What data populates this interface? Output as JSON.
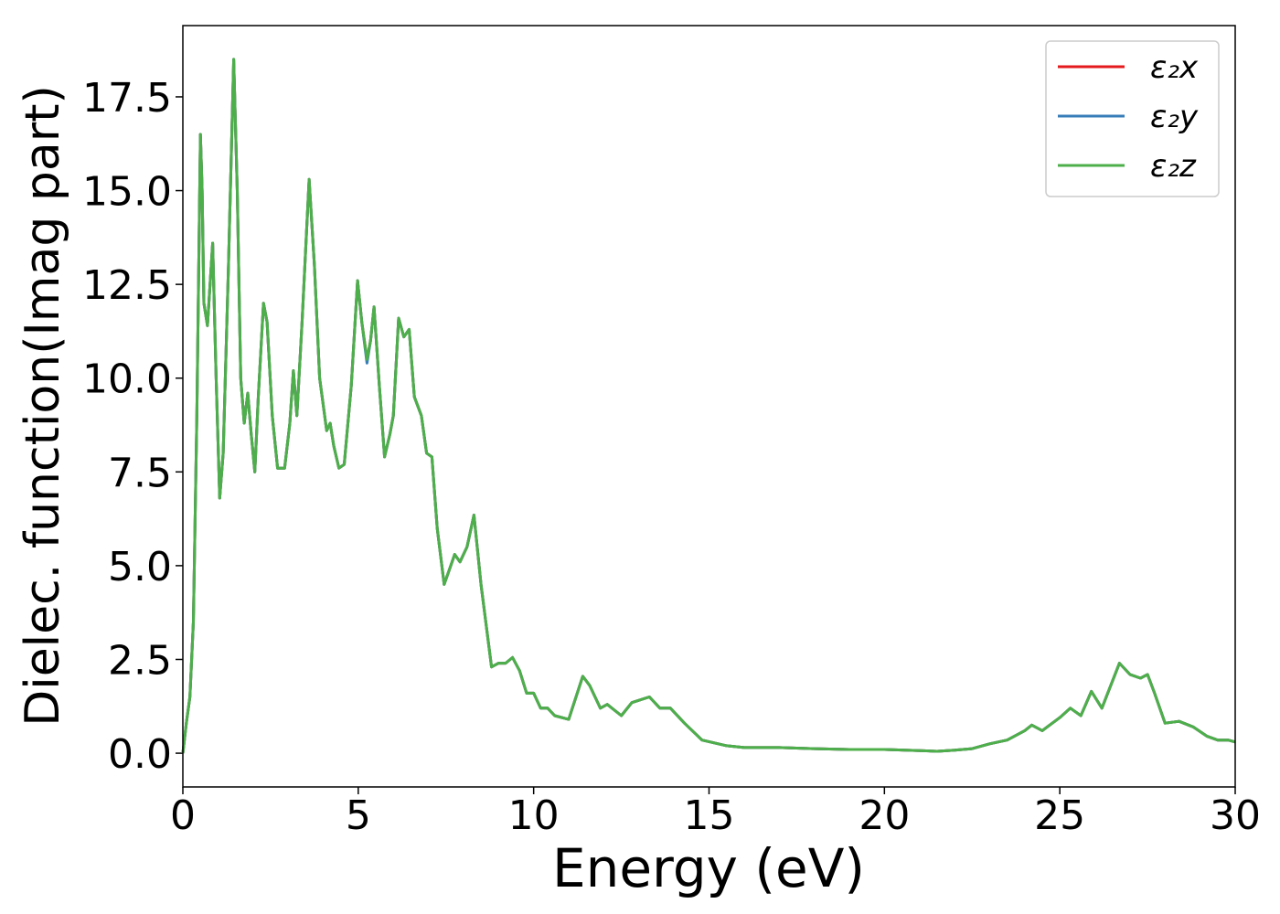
{
  "chart_data": {
    "type": "line",
    "xlabel": "Energy (eV)",
    "ylabel": "Dielec. function(Imag part)",
    "x": [
      0,
      0.1,
      0.2,
      0.3,
      0.4,
      0.5,
      0.55,
      0.6,
      0.7,
      0.85,
      0.95,
      1.05,
      1.15,
      1.3,
      1.45,
      1.55,
      1.65,
      1.75,
      1.85,
      1.95,
      2.05,
      2.15,
      2.3,
      2.4,
      2.55,
      2.7,
      2.9,
      3.05,
      3.15,
      3.25,
      3.4,
      3.6,
      3.75,
      3.9,
      4.1,
      4.2,
      4.3,
      4.45,
      4.6,
      4.8,
      4.98,
      5.1,
      5.25,
      5.35,
      5.45,
      5.6,
      5.75,
      5.9,
      6.0,
      6.15,
      6.3,
      6.45,
      6.6,
      6.8,
      6.95,
      7.1,
      7.25,
      7.45,
      7.6,
      7.75,
      7.9,
      8.1,
      8.3,
      8.5,
      8.8,
      9.0,
      9.2,
      9.4,
      9.6,
      9.8,
      10.0,
      10.2,
      10.4,
      10.6,
      11.0,
      11.4,
      11.6,
      11.9,
      12.1,
      12.5,
      12.8,
      13.3,
      13.6,
      13.9,
      14.3,
      14.8,
      15.5,
      16,
      17,
      18,
      19,
      20,
      21,
      21.5,
      22,
      22.5,
      23,
      23.5,
      24,
      24.2,
      24.5,
      25,
      25.3,
      25.6,
      25.9,
      26.2,
      26.7,
      27,
      27.3,
      27.5,
      27.7,
      28,
      28.4,
      28.8,
      29.2,
      29.5,
      29.8,
      30
    ],
    "series": [
      {
        "name": "ε₂x",
        "color": "#e41a1c",
        "values": [
          0,
          0.8,
          1.5,
          3.5,
          9,
          16.5,
          15,
          12,
          11.4,
          13.6,
          10,
          6.8,
          8,
          13,
          18.5,
          15,
          10,
          8.8,
          9.6,
          8.5,
          7.5,
          9.5,
          12,
          11.5,
          9,
          7.6,
          7.6,
          8.8,
          10.2,
          9.0,
          11.5,
          15.3,
          13,
          10,
          8.6,
          8.8,
          8.2,
          7.6,
          7.7,
          9.8,
          12.6,
          11.5,
          10.5,
          11,
          11.9,
          9.8,
          7.9,
          8.5,
          9,
          11.6,
          11.1,
          11.3,
          9.5,
          9,
          8,
          7.9,
          6,
          4.5,
          4.9,
          5.3,
          5.1,
          5.5,
          6.35,
          4.5,
          2.3,
          2.4,
          2.4,
          2.55,
          2.2,
          1.6,
          1.6,
          1.2,
          1.2,
          1.0,
          0.9,
          2.05,
          1.8,
          1.2,
          1.3,
          1.0,
          1.35,
          1.5,
          1.2,
          1.2,
          0.8,
          0.35,
          0.2,
          0.15,
          0.15,
          0.12,
          0.1,
          0.1,
          0.07,
          0.05,
          0.08,
          0.12,
          0.25,
          0.35,
          0.6,
          0.75,
          0.6,
          0.95,
          1.2,
          1.0,
          1.65,
          1.2,
          2.4,
          2.1,
          2.0,
          2.1,
          1.6,
          0.8,
          0.85,
          0.7,
          0.45,
          0.35,
          0.35,
          0.3
        ]
      },
      {
        "name": "ε₂y",
        "color": "#377eb8",
        "values": [
          0,
          0.8,
          1.5,
          3.5,
          9,
          16.5,
          15,
          12,
          11.4,
          13.6,
          10,
          6.8,
          8,
          13,
          18.5,
          15,
          10,
          8.8,
          9.6,
          8.5,
          7.5,
          9.5,
          12,
          11.5,
          9,
          7.6,
          7.6,
          8.8,
          10.2,
          9.0,
          11.5,
          15.3,
          13,
          10,
          8.6,
          8.8,
          8.2,
          7.6,
          7.7,
          9.8,
          12.6,
          11.5,
          10.4,
          11,
          11.9,
          9.8,
          7.9,
          8.5,
          9,
          11.6,
          11.1,
          11.3,
          9.5,
          9,
          8,
          7.9,
          6,
          4.5,
          4.9,
          5.3,
          5.1,
          5.5,
          6.35,
          4.5,
          2.3,
          2.4,
          2.4,
          2.55,
          2.2,
          1.6,
          1.6,
          1.2,
          1.2,
          1.0,
          0.9,
          2.05,
          1.8,
          1.2,
          1.3,
          1.0,
          1.35,
          1.5,
          1.2,
          1.2,
          0.8,
          0.35,
          0.2,
          0.15,
          0.15,
          0.12,
          0.1,
          0.1,
          0.07,
          0.05,
          0.08,
          0.12,
          0.25,
          0.35,
          0.6,
          0.75,
          0.6,
          0.95,
          1.2,
          1.0,
          1.65,
          1.2,
          2.4,
          2.1,
          2.0,
          2.1,
          1.6,
          0.8,
          0.85,
          0.7,
          0.45,
          0.35,
          0.35,
          0.3
        ]
      },
      {
        "name": "ε₂z",
        "color": "#4daf4a",
        "values": [
          0,
          0.8,
          1.5,
          3.5,
          9,
          16.5,
          15,
          12,
          11.4,
          13.6,
          10,
          6.8,
          8,
          13,
          18.5,
          15,
          10,
          8.8,
          9.6,
          8.5,
          7.5,
          9.5,
          12,
          11.5,
          9,
          7.6,
          7.6,
          8.8,
          10.2,
          9.0,
          11.5,
          15.3,
          13,
          10,
          8.6,
          8.8,
          8.2,
          7.6,
          7.7,
          9.8,
          12.6,
          11.5,
          10.5,
          11,
          11.9,
          9.8,
          7.9,
          8.5,
          9,
          11.6,
          11.1,
          11.3,
          9.5,
          9,
          8,
          7.9,
          6,
          4.5,
          4.9,
          5.3,
          5.1,
          5.5,
          6.35,
          4.5,
          2.3,
          2.4,
          2.4,
          2.55,
          2.2,
          1.6,
          1.6,
          1.2,
          1.2,
          1.0,
          0.9,
          2.05,
          1.8,
          1.2,
          1.3,
          1.0,
          1.35,
          1.5,
          1.2,
          1.2,
          0.8,
          0.35,
          0.2,
          0.15,
          0.15,
          0.12,
          0.1,
          0.1,
          0.07,
          0.05,
          0.08,
          0.12,
          0.25,
          0.35,
          0.6,
          0.75,
          0.6,
          0.95,
          1.2,
          1.0,
          1.65,
          1.2,
          2.4,
          2.1,
          2.0,
          2.1,
          1.6,
          0.8,
          0.85,
          0.7,
          0.45,
          0.35,
          0.35,
          0.3
        ]
      }
    ],
    "xlim": [
      0,
      30
    ],
    "xticks": [
      0,
      5,
      10,
      15,
      20,
      25,
      30
    ],
    "ylim": [
      -0.9,
      19.4
    ],
    "yticks": [
      {
        "value": 0,
        "label": "0.0"
      },
      2.5,
      {
        "value": 5,
        "label": "5.0"
      },
      7.5,
      {
        "value": 10,
        "label": "10.0"
      },
      12.5,
      {
        "value": 15,
        "label": "15.0"
      },
      17.5
    ],
    "legend": "upper right"
  }
}
